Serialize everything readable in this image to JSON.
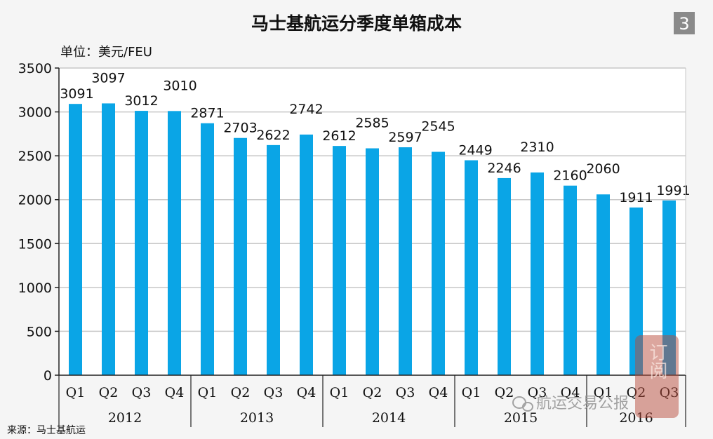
{
  "header": {
    "title": "马士基航运分季度单箱成本",
    "badge": "3",
    "unit": "单位：美元/FEU"
  },
  "source": "来源：马士基航运",
  "watermark": {
    "text": "航运交易公报",
    "seal": "订阅"
  },
  "colors": {
    "bar": "#0aa5e6",
    "grid": "#c8c8c8",
    "axis": "#222222",
    "badge_bg": "#8a8a8a",
    "plot_bg": "#ffffff",
    "seal": "#b84a3a"
  },
  "chart_data": {
    "type": "bar",
    "title": "马士基航运分季度单箱成本",
    "ylabel": "单位：美元/FEU",
    "ylim": [
      0,
      3500
    ],
    "yticks": [
      0,
      500,
      1000,
      1500,
      2000,
      2500,
      3000,
      3500
    ],
    "grid": true,
    "categories": [
      "Q1",
      "Q2",
      "Q3",
      "Q4",
      "Q1",
      "Q2",
      "Q3",
      "Q4",
      "Q1",
      "Q2",
      "Q3",
      "Q4",
      "Q1",
      "Q2",
      "Q3",
      "Q4",
      "Q1",
      "Q2",
      "Q3"
    ],
    "groups": [
      {
        "label": "2012",
        "count": 4
      },
      {
        "label": "2013",
        "count": 4
      },
      {
        "label": "2014",
        "count": 4
      },
      {
        "label": "2015",
        "count": 4
      },
      {
        "label": "2016",
        "count": 3
      }
    ],
    "values": [
      3091,
      3097,
      3012,
      3010,
      2871,
      2703,
      2622,
      2742,
      2612,
      2585,
      2597,
      2545,
      2449,
      2246,
      2310,
      2160,
      2060,
      1911,
      1991
    ]
  }
}
